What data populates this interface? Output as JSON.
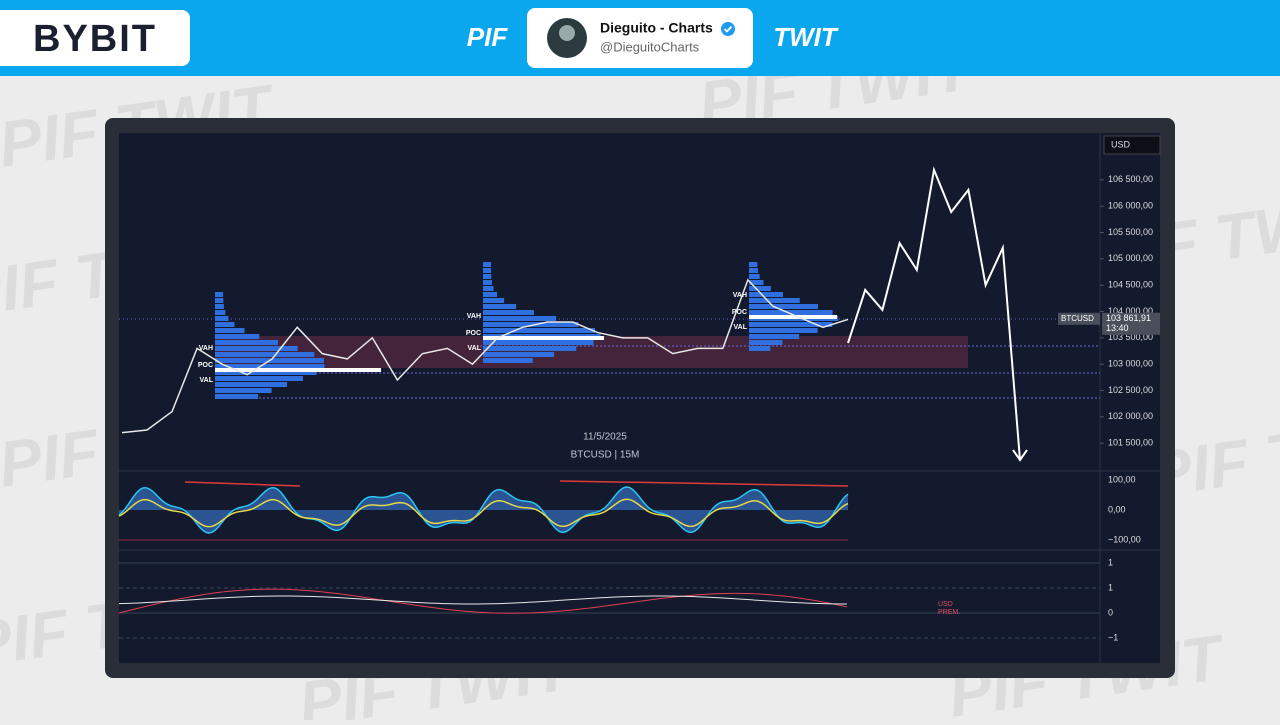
{
  "header": {
    "logo": "BYBIT",
    "left_tag": "PIF",
    "right_tag": "TWIT",
    "profile_name": "Dieguito - Charts",
    "profile_handle": "@DieguitoCharts"
  },
  "watermark": "PIF TWIT",
  "chart_data": {
    "type": "line",
    "currency": "USD",
    "date": "11/5/2025",
    "symbol_label": "BTCUSD | 15M",
    "values": [
      101700,
      101750,
      102100,
      103300,
      103000,
      102800,
      103100,
      103700,
      103200,
      103100,
      103500,
      102700,
      103200,
      103300,
      103000,
      103500,
      103700,
      103800,
      103800,
      103600,
      103500,
      103500,
      103200,
      103300,
      103300,
      104600,
      104100,
      103900,
      103700,
      103850
    ],
    "color": "#e8e8e8",
    "projection": [
      103400,
      104410,
      104030,
      105300,
      104790,
      106690,
      105890,
      106310,
      104500,
      105210,
      101180
    ],
    "projection_color": "#ffffff",
    "last_price": {
      "symbol": "BTCUSD",
      "value": 103861.91,
      "label": "103 861,91",
      "time": "13:40"
    },
    "ylim": [
      100990,
      107390
    ],
    "yticks": [
      {
        "value": 106500,
        "label": "106 500,00"
      },
      {
        "value": 106000,
        "label": "106 000,00"
      },
      {
        "value": 105500,
        "label": "105 500,00"
      },
      {
        "value": 105000,
        "label": "105 000,00"
      },
      {
        "value": 104500,
        "label": "104 500,00"
      },
      {
        "value": 104000,
        "label": "104 000,00"
      },
      {
        "value": 103500,
        "label": "103 500,00"
      },
      {
        "value": 103000,
        "label": "103 000,00"
      },
      {
        "value": 102500,
        "label": "102 500,00"
      },
      {
        "value": 102000,
        "label": "102 000,00"
      },
      {
        "value": 101500,
        "label": "101 500,00"
      }
    ],
    "profile_labels": [
      "VAH",
      "POC",
      "VAL"
    ]
  },
  "oscillator_axis": [
    "100,00",
    "0,00",
    "−100,00"
  ],
  "premium_axis": [
    "1",
    "1",
    "0",
    "−1"
  ],
  "premium_label": [
    "USD",
    "PREM."
  ]
}
